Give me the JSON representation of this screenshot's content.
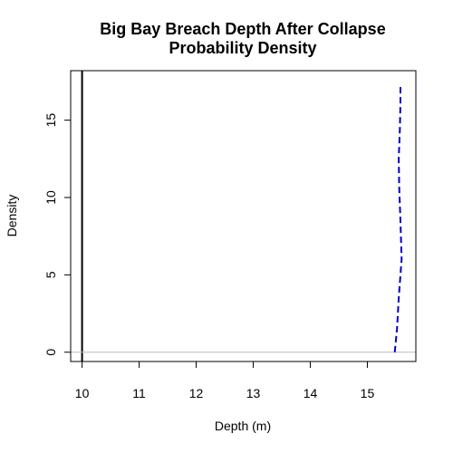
{
  "chart_data": {
    "type": "line",
    "title_lines": [
      "Big Bay Breach Depth After Collapse",
      "Probability Density"
    ],
    "xlabel": "Depth (m)",
    "ylabel": "Density",
    "xlim": [
      9.8,
      15.85
    ],
    "ylim": [
      -0.6,
      18.2
    ],
    "x_ticks": [
      10,
      11,
      12,
      13,
      14,
      15
    ],
    "x_tick_labels": [
      "10",
      "11",
      "12",
      "13",
      "14",
      "15"
    ],
    "y_ticks": [
      0,
      5,
      10,
      15
    ],
    "y_tick_labels": [
      "0",
      "5",
      "10",
      "15"
    ],
    "grid": false,
    "legend": "none",
    "reference_lines": [
      {
        "name": "vertical-reference-line",
        "orientation": "vertical",
        "value": 10,
        "color": "#000000",
        "style": "solid"
      },
      {
        "name": "zero-baseline",
        "orientation": "horizontal",
        "value": 0,
        "color": "#bebebe",
        "style": "solid"
      }
    ],
    "series": [
      {
        "style": "dashed",
        "color": "#0000cd",
        "x": [
          15.48,
          15.52,
          15.55,
          15.6,
          15.58,
          15.56,
          15.55,
          15.57,
          15.58,
          15.58
        ],
        "y": [
          0.0,
          1.5,
          3.5,
          6.0,
          8.5,
          10.5,
          12.5,
          14.5,
          16.2,
          17.2
        ]
      }
    ]
  }
}
